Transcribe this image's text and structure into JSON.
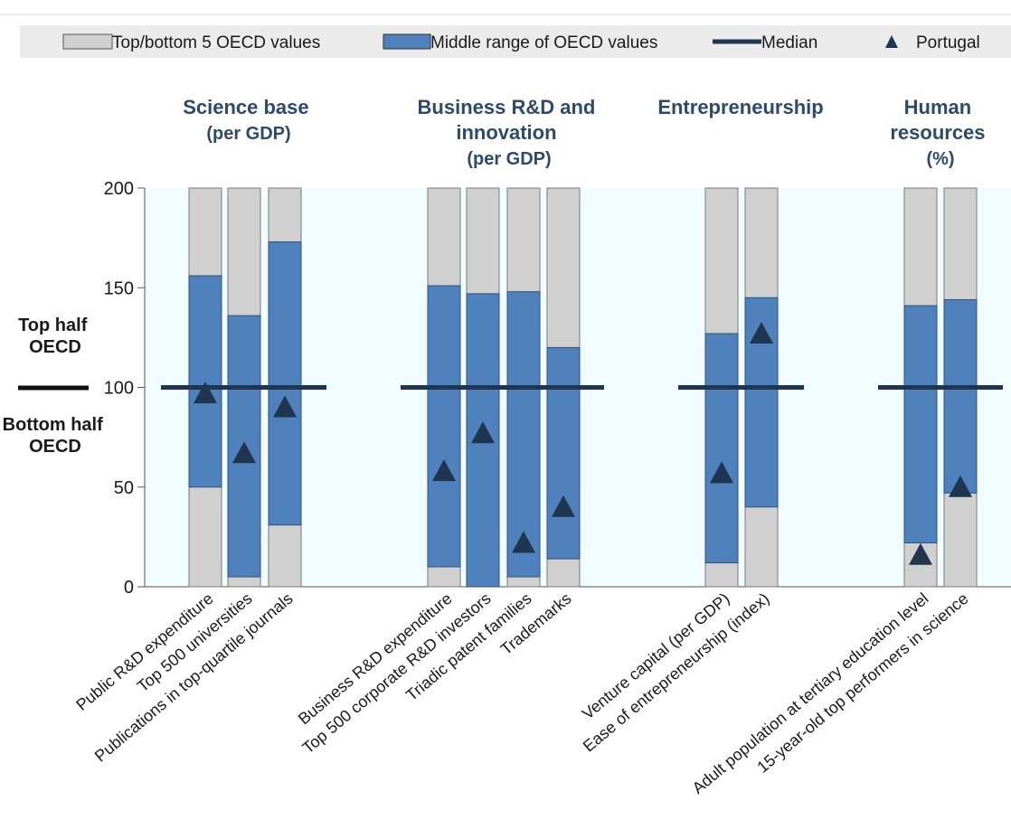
{
  "legend": {
    "items": [
      {
        "label": "Top/bottom 5 OECD values",
        "kind": "gray-box"
      },
      {
        "label": "Middle range of OECD values",
        "kind": "blue-box"
      },
      {
        "label": "Median",
        "kind": "line"
      },
      {
        "label": "Portugal",
        "kind": "triangle"
      }
    ]
  },
  "side_labels": {
    "top": [
      "Top half",
      "OECD"
    ],
    "bottom": [
      "Bottom half",
      "OECD"
    ]
  },
  "colors": {
    "gray": "#d0d0d0",
    "blue": "#4f81bd",
    "median": "#1f3550",
    "triangle": "#1f3550",
    "plot_bg": "#f0fcfd",
    "legend_bg": "#ebebeb"
  },
  "chart_data": {
    "type": "bar",
    "ylim": [
      0,
      200
    ],
    "yticks": [
      0,
      50,
      100,
      150,
      200
    ],
    "median": 100,
    "groups": [
      {
        "title": "Science base",
        "subtitle": [
          "(per GDP)"
        ],
        "indicators": [
          {
            "label": "Public R&D expenditure",
            "low": 50,
            "high": 156,
            "portugal": 97
          },
          {
            "label": "Top 500 universities",
            "low": 5,
            "high": 136,
            "portugal": 67
          },
          {
            "label": "Publications in top-quartile journals",
            "low": 31,
            "high": 173,
            "portugal": 90
          }
        ]
      },
      {
        "title": "Business R&D and innovation",
        "subtitle": [
          "(per GDP)"
        ],
        "indicators": [
          {
            "label": "Business R&D expenditure",
            "low": 10,
            "high": 151,
            "portugal": 58
          },
          {
            "label": "Top 500 corporate R&D investors",
            "low": 0,
            "high": 147,
            "portugal": 77
          },
          {
            "label": "Triadic patent families",
            "low": 5,
            "high": 148,
            "portugal": 22
          },
          {
            "label": "Trademarks",
            "low": 14,
            "high": 120,
            "portugal": 40
          }
        ]
      },
      {
        "title": "Entrepreneurship",
        "subtitle": [],
        "indicators": [
          {
            "label": "Venture capital (per GDP)",
            "low": 12,
            "high": 127,
            "portugal": 57
          },
          {
            "label": "Ease of entrepreneurship (index)",
            "low": 40,
            "high": 145,
            "portugal": 127
          }
        ]
      },
      {
        "title": "Human resources",
        "subtitle": [
          "(%)"
        ],
        "indicators": [
          {
            "label": "Adult population at tertiary education level",
            "low": 22,
            "high": 141,
            "portugal": 16
          },
          {
            "label": "15-year-old top performers in science",
            "low": 47,
            "high": 144,
            "portugal": 50
          }
        ]
      }
    ]
  }
}
